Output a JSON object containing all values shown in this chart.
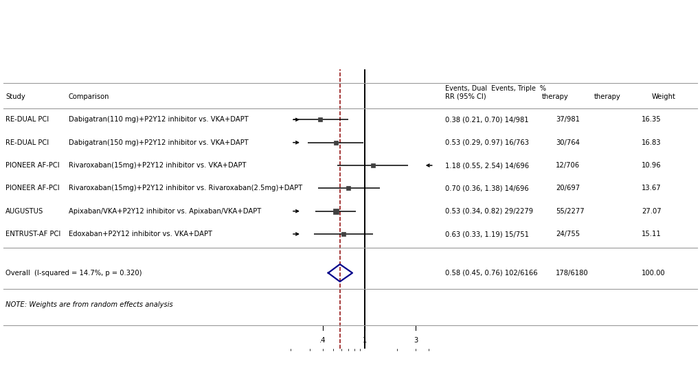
{
  "studies": [
    {
      "study": "RE-DUAL PCI",
      "comparison": "Dabigatran(110 mg)+P2Y12 inhibitor vs. VKA+DAPT",
      "rr": 0.38,
      "ci_low": 0.21,
      "ci_high": 0.7,
      "events_dual": "14/981",
      "events_triple": "37/981",
      "weight": 16.35,
      "rr_text": "0.38 (0.21, 0.70) 14/981",
      "left_arrow": true,
      "right_arrow": false
    },
    {
      "study": "RE-DUAL PCI",
      "comparison": "Dabigatran(150 mg)+P2Y12 inhibitor vs. VKA+DAPT",
      "rr": 0.53,
      "ci_low": 0.29,
      "ci_high": 0.97,
      "events_dual": "16/763",
      "events_triple": "30/764",
      "weight": 16.83,
      "rr_text": "0.53 (0.29, 0.97) 16/763",
      "left_arrow": true,
      "right_arrow": false
    },
    {
      "study": "PIONEER AF-PCI",
      "comparison": "Rivaroxaban(15mg)+P2Y12 inhibitor vs. VKA+DAPT",
      "rr": 1.18,
      "ci_low": 0.55,
      "ci_high": 2.54,
      "events_dual": "14/696",
      "events_triple": "12/706",
      "weight": 10.96,
      "rr_text": "1.18 (0.55, 2.54) 14/696",
      "left_arrow": false,
      "right_arrow": true
    },
    {
      "study": "PIONEER AF-PCI",
      "comparison": "Rivaroxaban(15mg)+P2Y12 inhibitor vs. Rivaroxaban(2.5mg)+DAPT",
      "rr": 0.7,
      "ci_low": 0.36,
      "ci_high": 1.38,
      "events_dual": "14/696",
      "events_triple": "20/697",
      "weight": 13.67,
      "rr_text": "0.70 (0.36, 1.38) 14/696",
      "left_arrow": false,
      "right_arrow": false
    },
    {
      "study": "AUGUSTUS",
      "comparison": "Apixaban/VKA+P2Y12 inhibitor vs. Apixaban/VKA+DAPT",
      "rr": 0.53,
      "ci_low": 0.34,
      "ci_high": 0.82,
      "events_dual": "29/2279",
      "events_triple": "55/2277",
      "weight": 27.07,
      "rr_text": "0.53 (0.34, 0.82) 29/2279",
      "left_arrow": true,
      "right_arrow": false
    },
    {
      "study": "ENTRUST-AF PCI",
      "comparison": "Edoxaban+P2Y12 inhibitor vs. VKA+DAPT",
      "rr": 0.63,
      "ci_low": 0.33,
      "ci_high": 1.19,
      "events_dual": "15/751",
      "events_triple": "24/755",
      "weight": 15.11,
      "rr_text": "0.63 (0.33, 1.19) 15/751",
      "left_arrow": true,
      "right_arrow": false
    }
  ],
  "overall": {
    "rr": 0.58,
    "ci_low": 0.45,
    "ci_high": 0.76,
    "events_dual": "102/6166",
    "events_triple": "178/6180",
    "weight": 100.0,
    "label": "Overall  (I-squared = 14.7%, p = 0.320)",
    "rr_text": "0.58 (0.45, 0.76) 102/6166"
  },
  "note": "NOTE: Weights are from random effects analysis",
  "header_line1": "Events, Dual  Events, Triple  %",
  "col_study": "Study",
  "col_comparison": "Comparison",
  "col_rr": "RR (95% CI)",
  "col_therapy1": "therapy",
  "col_therapy2": "therapy",
  "col_weight": "Weight",
  "xmin": 0.2,
  "xmax": 4.5,
  "xtick_vals": [
    0.4,
    1.0,
    3.0
  ],
  "xtick_labels": [
    ".4",
    "1",
    "3"
  ],
  "dashed_line_x": 0.58,
  "reference_line_x": 1.0,
  "bg_color": "#ffffff",
  "gray_bg_color": "#e0e0e8",
  "diamond_color": "#00008B",
  "ci_line_color": "#000000",
  "dashed_color": "#8B0000",
  "text_color": "#000000",
  "font_size": 7.2,
  "max_weight": 27.07
}
